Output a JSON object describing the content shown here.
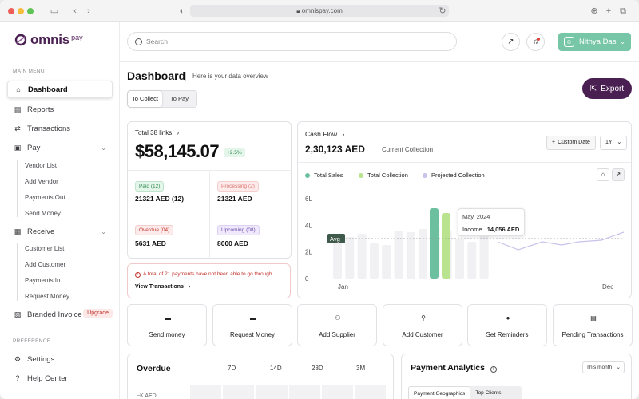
{
  "browser": {
    "url": "omnispay.com"
  },
  "brand": {
    "name": "omnis",
    "suffix": "pay"
  },
  "sidebar": {
    "main_label": "MAIN MENU",
    "pref_label": "PREFERENCE",
    "items": [
      {
        "label": "Dashboard",
        "icon": "home-icon"
      },
      {
        "label": "Reports",
        "icon": "document-icon"
      },
      {
        "label": "Transactions",
        "icon": "swap-icon"
      },
      {
        "label": "Pay",
        "icon": "wallet-icon"
      },
      {
        "label": "Receive",
        "icon": "receive-icon"
      },
      {
        "label": "Branded Invoice",
        "icon": "invoice-icon"
      },
      {
        "label": "Settings",
        "icon": "gear-icon"
      },
      {
        "label": "Help Center",
        "icon": "help-icon"
      }
    ],
    "pay_sub": [
      "Vendor List",
      "Add Vendor",
      "Payments Out",
      "Send Money"
    ],
    "receive_sub": [
      "Customer List",
      "Add Customer",
      "Payments In",
      "Request Money"
    ],
    "upgrade_label": "Upgrade"
  },
  "header": {
    "search_placeholder": "Search",
    "user_name": "Nithya Das"
  },
  "page": {
    "title": "Dashboard",
    "subtitle": "Here is your data overview",
    "tabs": [
      "To Collect",
      "To Pay"
    ],
    "export_label": "Export"
  },
  "links_card": {
    "title": "Total 38 links",
    "amount": "$58,145.07",
    "change": "+2.5%",
    "cells": [
      {
        "tag": "Paid (12)",
        "value": "21321 AED (12)"
      },
      {
        "tag": "Processing (2)",
        "value": "21321 AED"
      },
      {
        "tag": "Overdue (04)",
        "value": "5631 AED"
      },
      {
        "tag": "Upcoming (08)",
        "value": "8000 AED"
      }
    ]
  },
  "warning": {
    "text": "A total of 21 payments have not been able to go through.",
    "link": "View Transactions"
  },
  "cashflow": {
    "title": "Cash Flow",
    "amount": "2,30,123 AED",
    "subtitle": "Current Collection",
    "custom_date": "Custom Date",
    "period": "1Y",
    "colors": {
      "sales": "#6cbf9f",
      "collection": "#b9e38f",
      "projected": "#c9c2ea"
    }
  },
  "chart_data": {
    "type": "bar",
    "series": [
      {
        "name": "Total Sales"
      },
      {
        "name": "Total Collection"
      },
      {
        "name": "Projected Collection"
      }
    ],
    "y_ticks": [
      "6L",
      "4L",
      "2L",
      "0"
    ],
    "x_ticks": [
      "Jan",
      "Dec"
    ],
    "ylim": [
      0,
      6
    ],
    "avg_label": "Avg",
    "tooltip": {
      "month": "May, 2024",
      "label": "Income",
      "value": "14,056 AED"
    }
  },
  "quick_actions": [
    {
      "label": "Send money",
      "icon": "wallet-icon"
    },
    {
      "label": "Request Money",
      "icon": "wallet-icon"
    },
    {
      "label": "Add Supplier",
      "icon": "supplier-icon"
    },
    {
      "label": "Add Customer",
      "icon": "user-icon"
    },
    {
      "label": "Set Reminders",
      "icon": "alarm-icon"
    },
    {
      "label": "Pending Transactions",
      "icon": "pending-icon"
    }
  ],
  "overdue": {
    "title": "Overdue",
    "tabs": [
      "7D",
      "14D",
      "28D",
      "3M"
    ],
    "axis_label": "~K AED"
  },
  "analytics": {
    "title": "Payment Analytics",
    "select": "This month",
    "tabs": [
      "Payment Geographics",
      "Top Clients"
    ]
  }
}
